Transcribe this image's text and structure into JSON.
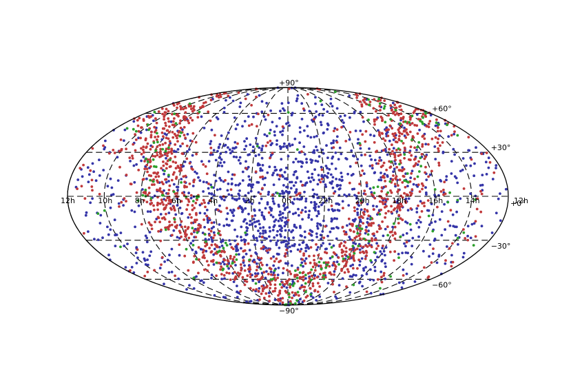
{
  "chart_data": {
    "type": "scatter",
    "projection": "mollweide",
    "title": "",
    "lon_range_hours": [
      0,
      24
    ],
    "lon_direction": "decreasing to the right (celestial)",
    "lat_range_deg": [
      -90,
      90
    ],
    "grid": true,
    "grid_style": "dashed",
    "lon_tick_labels": [
      "12h",
      "10h",
      "8h",
      "6h",
      "4h",
      "2h",
      "0h",
      "22h",
      "20h",
      "18h",
      "16h",
      "14h",
      "12h"
    ],
    "lat_tick_labels": [
      "+90°",
      "+60°",
      "+30°",
      "+0°",
      "−30°",
      "−60°",
      "−90°"
    ],
    "series": [
      {
        "color": "#c0393b",
        "distribution": "concentrated near the galactic plane band (high positive latitudes near 10h–6h and 18h–12h, equator edges), sparser toward center",
        "approx_count": 1300
      },
      {
        "color": "#3535a8",
        "distribution": "broadly scattered across the sky, denser near 0h center and southern regions",
        "approx_count": 1500
      },
      {
        "color": "#2ca02c",
        "distribution": "sparse, mostly along the galactic plane band",
        "approx_count": 200
      }
    ],
    "ra_label_suffix": "h"
  }
}
